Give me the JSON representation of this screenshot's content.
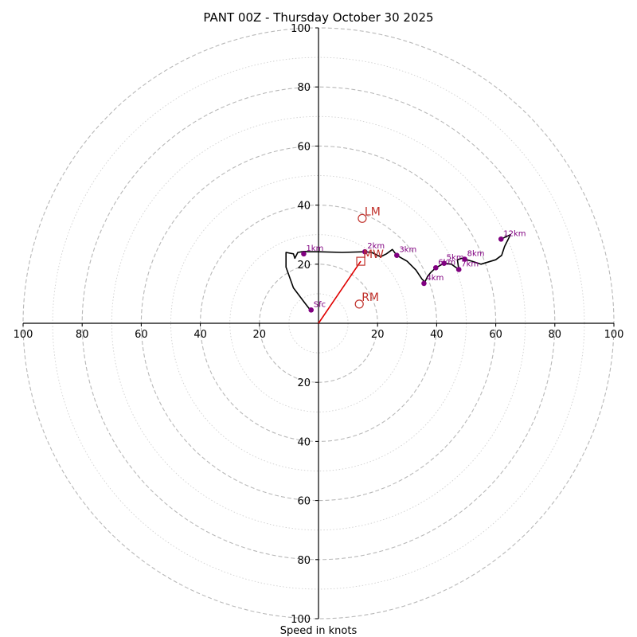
{
  "chart_data": {
    "type": "hodograph",
    "title": "PANT 00Z - Thursday October 30 2025",
    "xlabel": "Speed in knots",
    "units": "knots",
    "range": [
      -100,
      100
    ],
    "major_rings": [
      20,
      40,
      60,
      80,
      100
    ],
    "minor_rings": [
      10,
      30,
      50,
      70,
      90
    ],
    "x_tick_labels": [
      {
        "value": -100,
        "label": "100"
      },
      {
        "value": -80,
        "label": "80"
      },
      {
        "value": -60,
        "label": "60"
      },
      {
        "value": -40,
        "label": "40"
      },
      {
        "value": -20,
        "label": "20"
      },
      {
        "value": 20,
        "label": "20"
      },
      {
        "value": 40,
        "label": "40"
      },
      {
        "value": 60,
        "label": "60"
      },
      {
        "value": 80,
        "label": "80"
      },
      {
        "value": 100,
        "label": "100"
      }
    ],
    "y_tick_labels": [
      {
        "value": 100,
        "label": "100"
      },
      {
        "value": 80,
        "label": "80"
      },
      {
        "value": 60,
        "label": "60"
      },
      {
        "value": 40,
        "label": "40"
      },
      {
        "value": 20,
        "label": "20"
      },
      {
        "value": -20,
        "label": "20"
      },
      {
        "value": -40,
        "label": "40"
      },
      {
        "value": -60,
        "label": "60"
      },
      {
        "value": -80,
        "label": "80"
      },
      {
        "value": -100,
        "label": "100"
      }
    ],
    "trace": [
      [
        -2.8,
        4.5
      ],
      [
        -5.5,
        8
      ],
      [
        -8.5,
        12
      ],
      [
        -11,
        19
      ],
      [
        -11,
        24
      ],
      [
        -8.5,
        23.5
      ],
      [
        -8,
        22
      ],
      [
        -7,
        24
      ],
      [
        -5,
        24.3
      ],
      [
        -3,
        24.2
      ],
      [
        0,
        24.2
      ],
      [
        8,
        24
      ],
      [
        15.7,
        24.2
      ],
      [
        18,
        24
      ],
      [
        21,
        22.5
      ],
      [
        23,
        23.5
      ],
      [
        25,
        25
      ],
      [
        26.5,
        23
      ],
      [
        30,
        21
      ],
      [
        33,
        18
      ],
      [
        35,
        15
      ],
      [
        36,
        14
      ],
      [
        37,
        16
      ],
      [
        38,
        17.2
      ],
      [
        39.7,
        18.8
      ],
      [
        42.5,
        20.3
      ],
      [
        45,
        20
      ],
      [
        47.5,
        18.2
      ],
      [
        47,
        21.5
      ],
      [
        48.5,
        22
      ],
      [
        49.5,
        21.7
      ],
      [
        52,
        21
      ],
      [
        55,
        20
      ],
      [
        60,
        21.5
      ],
      [
        62,
        23
      ],
      [
        63,
        26
      ],
      [
        65,
        30
      ],
      [
        61.8,
        28.5
      ]
    ],
    "heights": [
      {
        "label": "Sfc",
        "u": -2.5,
        "v": 4.5
      },
      {
        "label": "1km",
        "u": -5,
        "v": 23.5
      },
      {
        "label": "2km",
        "u": 15.7,
        "v": 24.2
      },
      {
        "label": "3km",
        "u": 26.5,
        "v": 23
      },
      {
        "label": "4km",
        "u": 35.7,
        "v": 13.5
      },
      {
        "label": "5km",
        "u": 42.5,
        "v": 20.3
      },
      {
        "label": "6km",
        "u": 39.7,
        "v": 18.8
      },
      {
        "label": "7km",
        "u": 47.5,
        "v": 18.2
      },
      {
        "label": "8km",
        "u": 49.5,
        "v": 21.7
      },
      {
        "label": "12km",
        "u": 61.8,
        "v": 28.5
      }
    ],
    "motion_markers": [
      {
        "label": "LM",
        "u": 14.8,
        "v": 35.5,
        "shape": "circle"
      },
      {
        "label": "RM",
        "u": 13.8,
        "v": 6.5,
        "shape": "circle"
      },
      {
        "label": "MW",
        "u": 14.3,
        "v": 21,
        "shape": "square"
      }
    ],
    "shear_vector": {
      "u0": 0,
      "v0": 0,
      "u1": 14.3,
      "v1": 21
    },
    "colors": {
      "ring": "#b8b8b8",
      "trace": "#000000",
      "height_point": "#800080",
      "motion": "#c0302a",
      "shear": "#e00000"
    }
  }
}
